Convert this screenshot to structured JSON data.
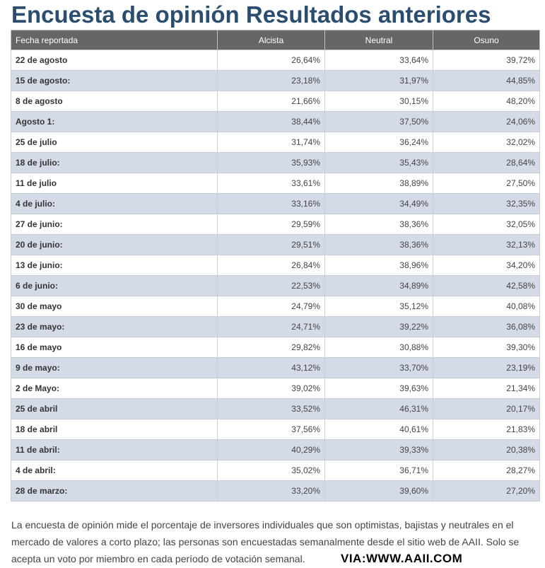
{
  "title": "Encuesta de opinión Resultados anteriores",
  "headers": [
    "Fecha reportada",
    "Alcista",
    "Neutral",
    "Osuno"
  ],
  "rows": [
    [
      "22 de agosto",
      "26,64%",
      "33,64%",
      "39,72%"
    ],
    [
      "15 de agosto:",
      "23,18%",
      "31,97%",
      "44,85%"
    ],
    [
      "8 de agosto",
      "21,66%",
      "30,15%",
      "48,20%"
    ],
    [
      "Agosto 1:",
      "38,44%",
      "37,50%",
      "24,06%"
    ],
    [
      "25 de julio",
      "31,74%",
      "36,24%",
      "32,02%"
    ],
    [
      "18 de julio:",
      "35,93%",
      "35,43%",
      "28,64%"
    ],
    [
      "11 de julio",
      "33,61%",
      "38,89%",
      "27,50%"
    ],
    [
      "4 de julio:",
      "33,16%",
      "34,49%",
      "32,35%"
    ],
    [
      "27 de junio:",
      "29,59%",
      "38,36%",
      "32,05%"
    ],
    [
      "20 de junio:",
      "29,51%",
      "38,36%",
      "32,13%"
    ],
    [
      "13 de junio:",
      "26,84%",
      "38,96%",
      "34,20%"
    ],
    [
      "6 de junio:",
      "22,53%",
      "34,89%",
      "42,58%"
    ],
    [
      "30 de mayo",
      "24,79%",
      "35,12%",
      "40,08%"
    ],
    [
      "23 de mayo:",
      "24,71%",
      "39,22%",
      "36,08%"
    ],
    [
      "16 de mayo",
      "29,82%",
      "30,88%",
      "39,30%"
    ],
    [
      "9 de mayo:",
      "43,12%",
      "33,70%",
      "23,19%"
    ],
    [
      "2 de Mayo:",
      "39,02%",
      "39,63%",
      "21,34%"
    ],
    [
      "25 de abril",
      "33,52%",
      "46,31%",
      "20,17%"
    ],
    [
      "18 de abril",
      "37,56%",
      "40,61%",
      "21,83%"
    ],
    [
      "11 de abril:",
      "40,29%",
      "39,33%",
      "20,38%"
    ],
    [
      "4 de abril:",
      "35,02%",
      "36,71%",
      "28,27%"
    ],
    [
      "28 de marzo:",
      "33,20%",
      "39,60%",
      "27,20%"
    ]
  ],
  "description": "La encuesta de opinión mide el porcentaje de inversores individuales que son optimistas, bajistas y neutrales en el mercado de valores a corto plazo; las personas son encuestadas semanalmente desde el sitio web de AAII. Solo se acepta un voto por miembro en cada período de votación semanal.",
  "watermark": "VIA:WWW.AAII.COM"
}
